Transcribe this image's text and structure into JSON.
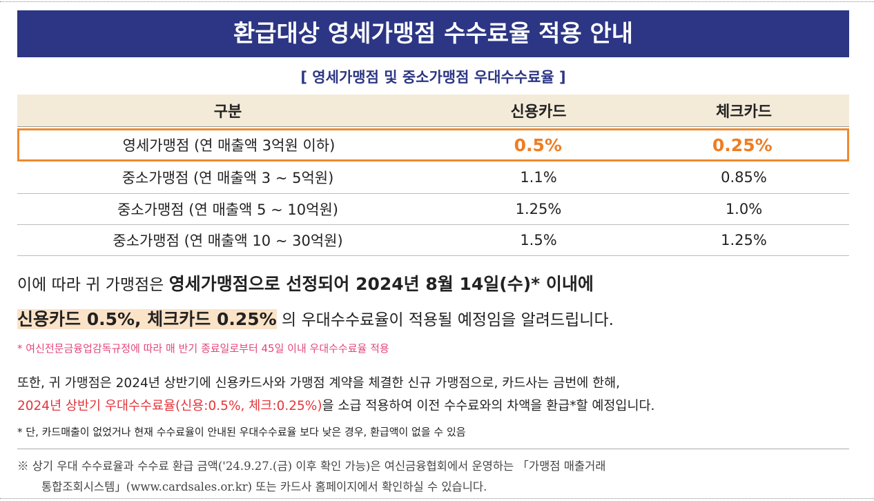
{
  "header": {
    "title": "환급대상 영세가맹점 수수료율 적용 안내",
    "subtitle": "[ 영세가맹점 및 중소가맹점 우대수수료율 ]"
  },
  "table": {
    "columns": [
      "구분",
      "신용카드",
      "체크카드"
    ],
    "rows": [
      [
        "영세가맹점 (연 매출액 3억원 이하)",
        "0.5%",
        "0.25%"
      ],
      [
        "중소가맹점 (연 매출액 3 ~ 5억원)",
        "1.1%",
        "0.85%"
      ],
      [
        "중소가맹점 (연 매출액 5 ~ 10억원)",
        "1.25%",
        "1.0%"
      ],
      [
        "중소가맹점 (연 매출액 10 ~ 30억원)",
        "1.5%",
        "1.25%"
      ]
    ]
  },
  "notice": {
    "line1_normal": "이에 따라 귀 가맹점은",
    "line1_bold": "영세가맹점으로 선정되어 2024년 8월 14일(수)* 이내에",
    "line2_highlight": "신용카드 0.5%, 체크카드 0.25%",
    "line2_normal": "의 우대수수료율이 적용될 예정임을 알려드립니다.",
    "note1": "* 여신전문금융업감독규정에 따라 매 반기 종료일로부터 45일 이내 우대수수료율 적용",
    "para2_line1": "또한, 귀 가맹점은 2024년 상반기에 신용카드사와 가맹점 계약을 체결한 신규 가맹점으로, 카드사는 금번에 한해,",
    "para2_red": "2024년 상반기 우대수수료율(신용:0.5%, 체크:0.25%)",
    "para2_rest": "을 소급 적용하여 이전 수수료와의 차액을 환급*할 예정입니다.",
    "note2": "* 단, 카드매출이 없었거나 현재 수수료율이 안내된 우대수수료율 보다 낮은 경우, 환급액이 없을 수 있음"
  },
  "footnote": [
    "※ 상기 우대 수수료율과 수수료 환급 금액('24.9.27.(금) 이후 확인 가능)은 여신금융협회에서 운영하는 「가맹점 매출거래",
    "통합조회시스템」(www.cardsales.or.kr) 또는 카드사 홈페이지에서 확인하실 수 있습니다."
  ]
}
